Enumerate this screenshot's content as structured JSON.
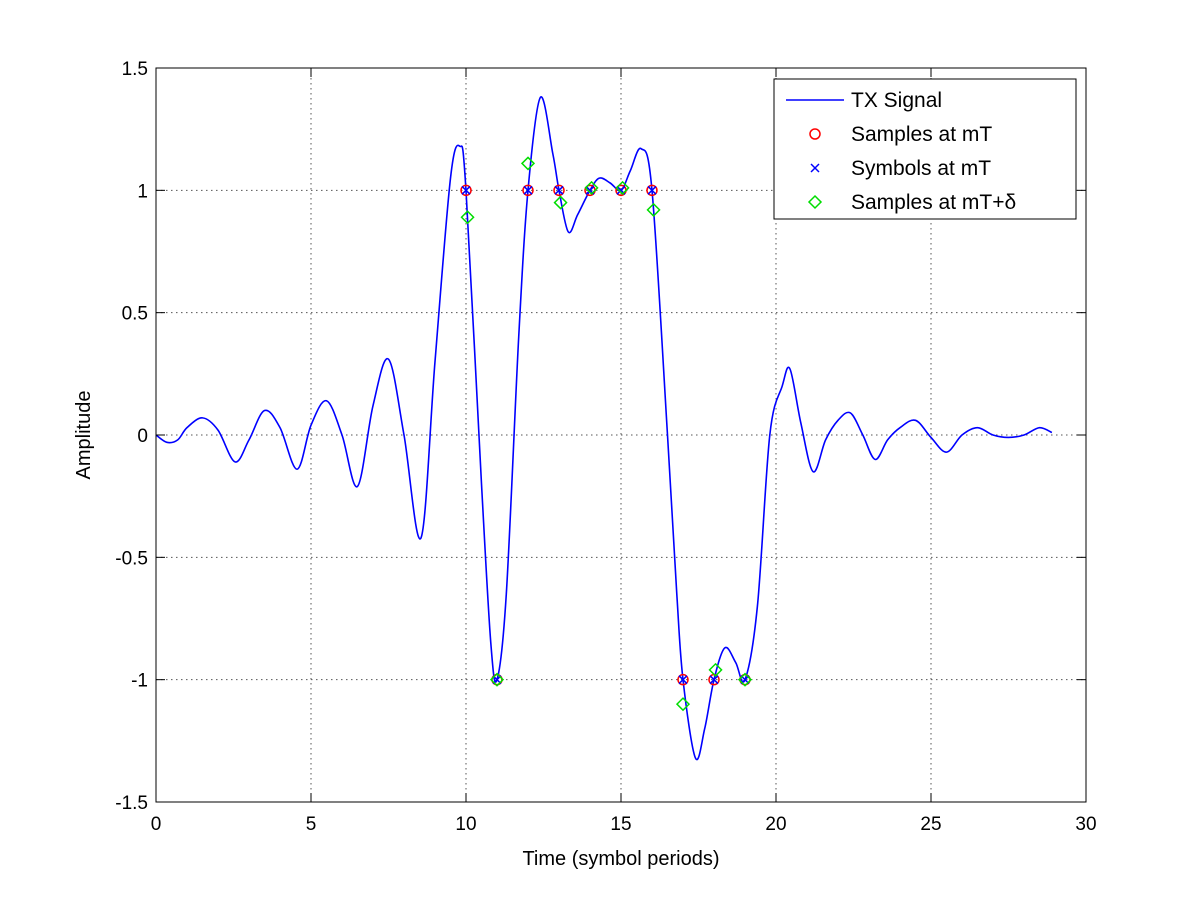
{
  "chart_data": {
    "type": "line",
    "title": "",
    "xlabel": "Time (symbol periods)",
    "ylabel": "Amplitude",
    "xlim": [
      0,
      30
    ],
    "ylim": [
      -1.5,
      1.5
    ],
    "xticks": [
      0,
      5,
      10,
      15,
      20,
      25,
      30
    ],
    "yticks": [
      -1.5,
      -1,
      -0.5,
      0,
      0.5,
      1,
      1.5
    ],
    "xtick_labels": [
      "0",
      "5",
      "10",
      "15",
      "20",
      "25",
      "30"
    ],
    "ytick_labels": [
      "-1.5",
      "-1",
      "-0.5",
      "0",
      "0.5",
      "1",
      "1.5"
    ],
    "grid": true,
    "legend_position": "top-right",
    "colors": {
      "signal": "#0000ff",
      "samples_mT": "#ff0000",
      "symbols_mT": "#0000ff",
      "samples_delta": "#00dd00"
    },
    "series": [
      {
        "name": "TX Signal",
        "style": "line",
        "points": [
          [
            0.0,
            0.0
          ],
          [
            0.35,
            -0.03
          ],
          [
            0.7,
            -0.02
          ],
          [
            1.0,
            0.03
          ],
          [
            1.5,
            0.07
          ],
          [
            2.0,
            0.02
          ],
          [
            2.55,
            -0.11
          ],
          [
            3.0,
            -0.02
          ],
          [
            3.5,
            0.1
          ],
          [
            4.0,
            0.03
          ],
          [
            4.55,
            -0.14
          ],
          [
            5.0,
            0.04
          ],
          [
            5.5,
            0.14
          ],
          [
            6.0,
            0.0
          ],
          [
            6.5,
            -0.21
          ],
          [
            7.0,
            0.12
          ],
          [
            7.5,
            0.31
          ],
          [
            8.0,
            0.0
          ],
          [
            8.55,
            -0.42
          ],
          [
            9.0,
            0.3
          ],
          [
            9.5,
            1.05
          ],
          [
            9.8,
            1.18
          ],
          [
            10.0,
            1.0
          ],
          [
            10.5,
            -0.2
          ],
          [
            10.8,
            -0.85
          ],
          [
            11.0,
            -1.0
          ],
          [
            11.3,
            -0.65
          ],
          [
            11.7,
            0.4
          ],
          [
            12.0,
            1.0
          ],
          [
            12.4,
            1.38
          ],
          [
            12.8,
            1.15
          ],
          [
            13.0,
            1.0
          ],
          [
            13.3,
            0.83
          ],
          [
            13.6,
            0.9
          ],
          [
            14.0,
            1.0
          ],
          [
            14.3,
            1.05
          ],
          [
            14.65,
            1.03
          ],
          [
            15.0,
            1.0
          ],
          [
            15.3,
            1.08
          ],
          [
            15.65,
            1.17
          ],
          [
            16.0,
            1.0
          ],
          [
            16.5,
            0.0
          ],
          [
            16.8,
            -0.65
          ],
          [
            17.0,
            -1.0
          ],
          [
            17.4,
            -1.32
          ],
          [
            17.7,
            -1.2
          ],
          [
            18.0,
            -1.0
          ],
          [
            18.35,
            -0.87
          ],
          [
            18.7,
            -0.93
          ],
          [
            19.0,
            -1.0
          ],
          [
            19.4,
            -0.7
          ],
          [
            19.8,
            0.0
          ],
          [
            20.2,
            0.2
          ],
          [
            20.45,
            0.27
          ],
          [
            20.8,
            0.05
          ],
          [
            21.2,
            -0.15
          ],
          [
            21.6,
            -0.02
          ],
          [
            22.0,
            0.06
          ],
          [
            22.4,
            0.09
          ],
          [
            22.8,
            0.0
          ],
          [
            23.2,
            -0.1
          ],
          [
            23.6,
            -0.02
          ],
          [
            24.0,
            0.03
          ],
          [
            24.5,
            0.06
          ],
          [
            25.0,
            -0.01
          ],
          [
            25.5,
            -0.07
          ],
          [
            26.0,
            0.0
          ],
          [
            26.5,
            0.03
          ],
          [
            27.0,
            0.0
          ],
          [
            27.5,
            -0.01
          ],
          [
            28.0,
            0.0
          ],
          [
            28.5,
            0.03
          ],
          [
            28.9,
            0.01
          ]
        ]
      },
      {
        "name": "Samples at mT",
        "style": "circle",
        "points": [
          [
            10,
            1
          ],
          [
            11,
            -1
          ],
          [
            12,
            1
          ],
          [
            13,
            1
          ],
          [
            14,
            1
          ],
          [
            15,
            1
          ],
          [
            16,
            1
          ],
          [
            17,
            -1
          ],
          [
            18,
            -1
          ],
          [
            19,
            -1
          ]
        ]
      },
      {
        "name": "Symbols at mT",
        "style": "x",
        "points": [
          [
            10,
            1
          ],
          [
            11,
            -1
          ],
          [
            12,
            1
          ],
          [
            13,
            1
          ],
          [
            14,
            1
          ],
          [
            15,
            1
          ],
          [
            16,
            1
          ],
          [
            17,
            -1
          ],
          [
            18,
            -1
          ],
          [
            19,
            -1
          ]
        ]
      },
      {
        "name": "Samples at mT+δ",
        "style": "diamond",
        "points": [
          [
            10.05,
            0.89
          ],
          [
            11.0,
            -1.0
          ],
          [
            12.0,
            1.11
          ],
          [
            13.05,
            0.95
          ],
          [
            14.05,
            1.01
          ],
          [
            15.05,
            1.01
          ],
          [
            16.05,
            0.92
          ],
          [
            17.0,
            -1.1
          ],
          [
            18.05,
            -0.96
          ],
          [
            19.0,
            -1.0
          ]
        ]
      }
    ]
  }
}
